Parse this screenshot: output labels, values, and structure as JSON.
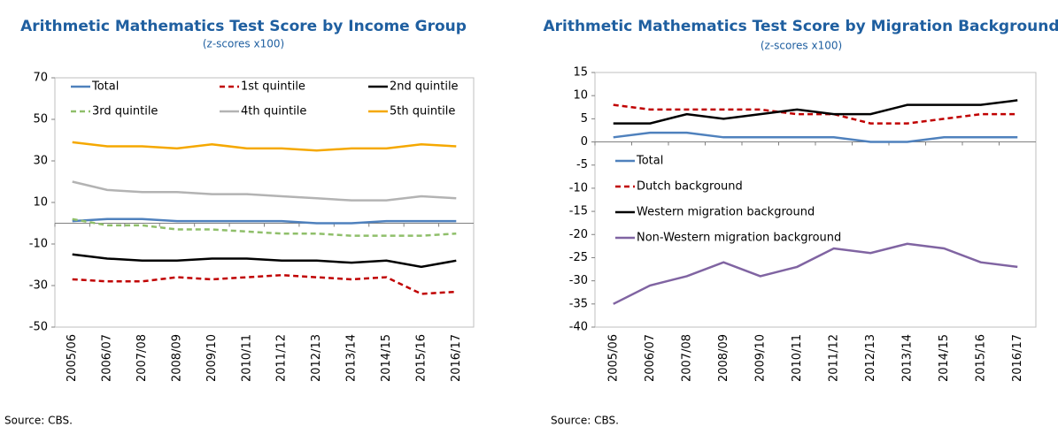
{
  "chart_data": [
    {
      "type": "line",
      "title": "Arithmetic Mathematics Test Score by Income Group",
      "subtitle": "(z-scores x100)",
      "source": "Source: CBS.",
      "categories": [
        "2005/06",
        "2006/07",
        "2007/08",
        "2008/09",
        "2009/10",
        "2010/11",
        "2011/12",
        "2012/13",
        "2013/14",
        "2014/15",
        "2015/16",
        "2016/17"
      ],
      "ylim": [
        -50,
        70
      ],
      "yticks": [
        -50,
        -30,
        -10,
        10,
        30,
        50,
        70
      ],
      "series": [
        {
          "name": "Total",
          "color": "#4f81bd",
          "dashed": false,
          "values": [
            1,
            2,
            2,
            1,
            1,
            1,
            1,
            0,
            0,
            1,
            1,
            1
          ]
        },
        {
          "name": "1st quintile",
          "color": "#c00000",
          "dashed": true,
          "values": [
            -27,
            -28,
            -28,
            -26,
            -27,
            -26,
            -25,
            -26,
            -27,
            -26,
            -34,
            -33
          ]
        },
        {
          "name": "2nd quintile",
          "color": "#000000",
          "dashed": false,
          "values": [
            -15,
            -17,
            -18,
            -18,
            -17,
            -17,
            -18,
            -18,
            -19,
            -18,
            -21,
            -18
          ]
        },
        {
          "name": "3rd quintile",
          "color": "#8fbf6a",
          "dashed": true,
          "values": [
            2,
            -1,
            -1,
            -3,
            -3,
            -4,
            -5,
            -5,
            -6,
            -6,
            -6,
            -5
          ]
        },
        {
          "name": "4th quintile",
          "color": "#b3b3b3",
          "dashed": false,
          "values": [
            20,
            16,
            15,
            15,
            14,
            14,
            13,
            12,
            11,
            11,
            13,
            12
          ]
        },
        {
          "name": "5th quintile",
          "color": "#f5a800",
          "dashed": false,
          "values": [
            39,
            37,
            37,
            36,
            38,
            36,
            36,
            35,
            36,
            36,
            38,
            37
          ]
        }
      ]
    },
    {
      "type": "line",
      "title": "Arithmetic Mathematics Test Score by Migration Background",
      "subtitle": "(z-scores x100)",
      "source": "Source: CBS.",
      "categories": [
        "2005/06",
        "2006/07",
        "2007/08",
        "2008/09",
        "2009/10",
        "2010/11",
        "2011/12",
        "2012/13",
        "2013/14",
        "2014/15",
        "2015/16",
        "2016/17"
      ],
      "ylim": [
        -40,
        15
      ],
      "yticks": [
        -40,
        -35,
        -30,
        -25,
        -20,
        -15,
        -10,
        -5,
        0,
        5,
        10,
        15
      ],
      "series": [
        {
          "name": "Total",
          "color": "#4f81bd",
          "dashed": false,
          "values": [
            1,
            2,
            2,
            1,
            1,
            1,
            1,
            0,
            0,
            1,
            1,
            1
          ]
        },
        {
          "name": "Dutch background",
          "color": "#c00000",
          "dashed": true,
          "values": [
            8,
            7,
            7,
            7,
            7,
            6,
            6,
            4,
            4,
            5,
            6,
            6
          ]
        },
        {
          "name": "Western migration background",
          "color": "#000000",
          "dashed": false,
          "values": [
            4,
            4,
            6,
            5,
            6,
            7,
            6,
            6,
            8,
            8,
            8,
            9
          ]
        },
        {
          "name": "Non-Western migration background",
          "color": "#8064a2",
          "dashed": false,
          "values": [
            -35,
            -31,
            -29,
            -26,
            -29,
            -27,
            -23,
            -24,
            -22,
            -23,
            -26,
            -27
          ]
        }
      ]
    }
  ]
}
